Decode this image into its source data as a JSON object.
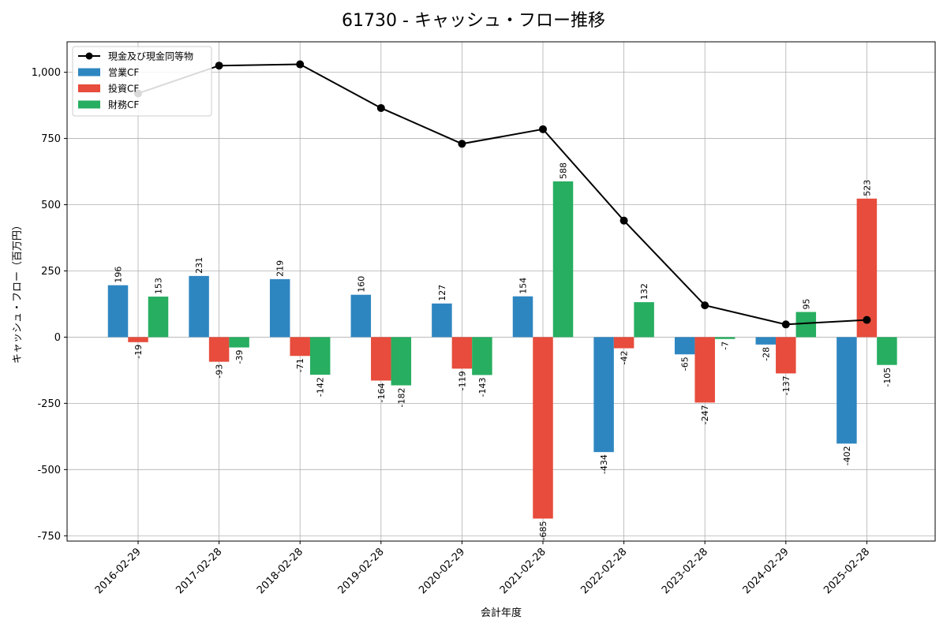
{
  "chart_data": {
    "type": "bar",
    "title": "61730 - キャッシュ・フロー推移",
    "xlabel": "会計年度",
    "ylabel": "キャッシュ・フロー（百万円）",
    "categories": [
      "2016-02-29",
      "2017-02-28",
      "2018-02-28",
      "2019-02-28",
      "2020-02-29",
      "2021-02-28",
      "2022-02-28",
      "2023-02-28",
      "2024-02-29",
      "2025-02-28"
    ],
    "ylim": [
      -770,
      1115
    ],
    "yticks": [
      -750,
      -500,
      -250,
      0,
      250,
      500,
      750,
      1000
    ],
    "ytick_labels": [
      "-750",
      "-500",
      "-250",
      "0",
      "250",
      "500",
      "750",
      "1,000"
    ],
    "grid": true,
    "legend_position": "top-left",
    "series": [
      {
        "name": "営業CF",
        "kind": "bar",
        "color": "#2e86c1",
        "values": [
          196,
          231,
          219,
          160,
          127,
          154,
          -434,
          -65,
          -28,
          -402
        ]
      },
      {
        "name": "投資CF",
        "kind": "bar",
        "color": "#e74c3c",
        "values": [
          -19,
          -93,
          -71,
          -164,
          -119,
          -685,
          -42,
          -247,
          -137,
          523
        ]
      },
      {
        "name": "財務CF",
        "kind": "bar",
        "color": "#27ae60",
        "values": [
          153,
          -39,
          -142,
          -182,
          -143,
          588,
          132,
          -7,
          95,
          -105
        ]
      },
      {
        "name": "現金及び現金同等物",
        "kind": "line",
        "color": "#000000",
        "values": [
          920,
          1025,
          1030,
          865,
          730,
          785,
          440,
          120,
          48,
          65
        ]
      }
    ]
  }
}
